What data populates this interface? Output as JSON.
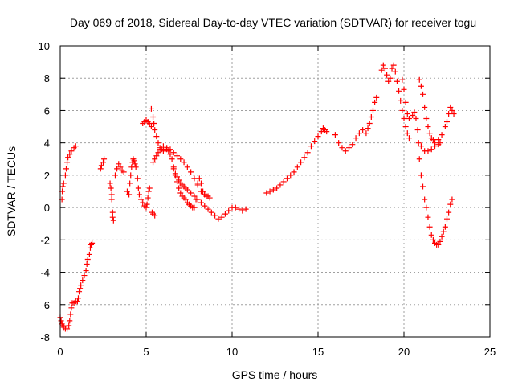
{
  "chart_data": {
    "type": "scatter",
    "title": "Day 069 of 2018, Sidereal Day-to-day VTEC variation (SDTVAR) for receiver togu",
    "xlabel": "GPS time / hours",
    "ylabel": "SDTVAR / TECUs",
    "xlim": [
      0,
      25
    ],
    "ylim": [
      -8,
      10
    ],
    "xticks": [
      0,
      5,
      10,
      15,
      20,
      25
    ],
    "yticks": [
      -8,
      -6,
      -4,
      -2,
      0,
      2,
      4,
      6,
      8,
      10
    ],
    "grid": true,
    "marker": "plus",
    "series": [
      {
        "color": "#ff0000",
        "points": [
          [
            0.0,
            -6.8
          ],
          [
            0.05,
            -7.0
          ],
          [
            0.1,
            -7.2
          ],
          [
            0.15,
            -7.3
          ],
          [
            0.2,
            -7.4
          ],
          [
            0.3,
            -7.5
          ],
          [
            0.4,
            -7.5
          ],
          [
            0.5,
            -7.3
          ],
          [
            0.55,
            -7.0
          ],
          [
            0.6,
            -6.6
          ],
          [
            0.65,
            -6.2
          ],
          [
            0.7,
            -5.9
          ],
          [
            0.8,
            -5.9
          ],
          [
            0.9,
            -5.8
          ],
          [
            1.0,
            -5.8
          ],
          [
            1.05,
            -5.6
          ],
          [
            1.1,
            -5.2
          ],
          [
            1.15,
            -5.0
          ],
          [
            1.2,
            -4.8
          ],
          [
            1.3,
            -4.5
          ],
          [
            1.4,
            -4.2
          ],
          [
            1.5,
            -3.9
          ],
          [
            1.55,
            -3.5
          ],
          [
            1.6,
            -3.2
          ],
          [
            1.7,
            -2.9
          ],
          [
            1.75,
            -2.5
          ],
          [
            1.8,
            -2.3
          ],
          [
            1.85,
            -2.2
          ],
          [
            0.1,
            0.5
          ],
          [
            0.12,
            1.0
          ],
          [
            0.15,
            1.3
          ],
          [
            0.2,
            1.5
          ],
          [
            0.3,
            2.0
          ],
          [
            0.35,
            2.4
          ],
          [
            0.4,
            2.8
          ],
          [
            0.45,
            3.1
          ],
          [
            0.55,
            3.3
          ],
          [
            0.65,
            3.5
          ],
          [
            0.8,
            3.7
          ],
          [
            0.9,
            3.8
          ],
          [
            2.35,
            2.4
          ],
          [
            2.4,
            2.6
          ],
          [
            2.5,
            2.8
          ],
          [
            2.55,
            3.0
          ],
          [
            2.9,
            1.5
          ],
          [
            2.95,
            1.2
          ],
          [
            3.0,
            0.8
          ],
          [
            3.0,
            0.5
          ],
          [
            3.05,
            -0.3
          ],
          [
            3.05,
            -0.6
          ],
          [
            3.1,
            -0.8
          ],
          [
            3.2,
            2.0
          ],
          [
            3.3,
            2.4
          ],
          [
            3.4,
            2.7
          ],
          [
            3.5,
            2.5
          ],
          [
            3.6,
            2.3
          ],
          [
            3.7,
            2.2
          ],
          [
            3.9,
            1.0
          ],
          [
            4.0,
            0.8
          ],
          [
            4.05,
            1.5
          ],
          [
            4.1,
            2.0
          ],
          [
            4.15,
            2.5
          ],
          [
            4.2,
            2.8
          ],
          [
            4.25,
            3.0
          ],
          [
            4.3,
            2.9
          ],
          [
            4.35,
            2.7
          ],
          [
            4.4,
            2.5
          ],
          [
            4.5,
            1.8
          ],
          [
            4.55,
            1.2
          ],
          [
            4.6,
            0.8
          ],
          [
            4.7,
            0.5
          ],
          [
            4.8,
            0.3
          ],
          [
            4.9,
            0.1
          ],
          [
            5.0,
            0.0
          ],
          [
            5.05,
            0.2
          ],
          [
            5.1,
            0.6
          ],
          [
            5.15,
            1.0
          ],
          [
            5.2,
            1.2
          ],
          [
            4.8,
            5.2
          ],
          [
            4.9,
            5.3
          ],
          [
            5.0,
            5.4
          ],
          [
            5.1,
            5.3
          ],
          [
            5.2,
            5.2
          ],
          [
            5.3,
            5.0
          ],
          [
            5.3,
            6.1
          ],
          [
            5.4,
            5.6
          ],
          [
            5.45,
            5.2
          ],
          [
            5.5,
            4.8
          ],
          [
            5.6,
            4.4
          ],
          [
            5.7,
            4.0
          ],
          [
            5.8,
            3.7
          ],
          [
            5.9,
            3.6
          ],
          [
            6.0,
            3.5
          ],
          [
            6.1,
            3.6
          ],
          [
            6.2,
            3.6
          ],
          [
            6.3,
            3.5
          ],
          [
            6.4,
            3.3
          ],
          [
            6.5,
            3.0
          ],
          [
            6.6,
            2.5
          ],
          [
            6.7,
            2.0
          ],
          [
            6.8,
            1.6
          ],
          [
            6.9,
            1.2
          ],
          [
            7.0,
            0.9
          ],
          [
            7.1,
            0.7
          ],
          [
            7.2,
            0.6
          ],
          [
            7.3,
            0.5
          ],
          [
            7.4,
            0.3
          ],
          [
            7.5,
            0.2
          ],
          [
            7.6,
            0.1
          ],
          [
            7.7,
            0.0
          ],
          [
            7.8,
            0.0
          ],
          [
            7.9,
            0.5
          ],
          [
            8.0,
            1.5
          ],
          [
            8.1,
            1.8
          ],
          [
            8.2,
            1.5
          ],
          [
            8.3,
            1.0
          ],
          [
            8.4,
            0.8
          ],
          [
            8.5,
            0.7
          ],
          [
            8.6,
            0.7
          ],
          [
            8.7,
            0.6
          ],
          [
            5.35,
            -0.3
          ],
          [
            5.4,
            -0.4
          ],
          [
            5.5,
            -0.5
          ],
          [
            5.4,
            2.8
          ],
          [
            5.5,
            3.0
          ],
          [
            5.6,
            3.2
          ],
          [
            5.7,
            3.4
          ],
          [
            5.8,
            3.6
          ],
          [
            6.0,
            3.8
          ],
          [
            6.2,
            3.7
          ],
          [
            6.4,
            3.6
          ],
          [
            6.6,
            3.4
          ],
          [
            6.8,
            3.2
          ],
          [
            7.0,
            3.0
          ],
          [
            7.2,
            2.8
          ],
          [
            7.4,
            2.5
          ],
          [
            7.6,
            2.2
          ],
          [
            7.8,
            1.8
          ],
          [
            8.0,
            1.4
          ],
          [
            8.2,
            1.0
          ],
          [
            8.4,
            0.8
          ],
          [
            8.5,
            0.7
          ],
          [
            6.6,
            2.4
          ],
          [
            6.7,
            2.1
          ],
          [
            6.8,
            1.9
          ],
          [
            6.9,
            1.7
          ],
          [
            7.0,
            1.5
          ],
          [
            7.1,
            1.4
          ],
          [
            7.2,
            1.3
          ],
          [
            7.3,
            1.2
          ],
          [
            7.4,
            1.1
          ],
          [
            7.6,
            0.9
          ],
          [
            7.8,
            0.7
          ],
          [
            8.0,
            0.5
          ],
          [
            8.2,
            0.3
          ],
          [
            8.4,
            0.1
          ],
          [
            8.6,
            -0.1
          ],
          [
            8.8,
            -0.3
          ],
          [
            9.0,
            -0.5
          ],
          [
            9.2,
            -0.7
          ],
          [
            9.4,
            -0.6
          ],
          [
            9.6,
            -0.4
          ],
          [
            9.8,
            -0.2
          ],
          [
            10.0,
            0.0
          ],
          [
            10.2,
            0.0
          ],
          [
            10.4,
            -0.1
          ],
          [
            10.6,
            -0.2
          ],
          [
            10.8,
            -0.1
          ],
          [
            12.0,
            0.9
          ],
          [
            12.2,
            1.0
          ],
          [
            12.4,
            1.1
          ],
          [
            12.6,
            1.2
          ],
          [
            12.8,
            1.4
          ],
          [
            13.0,
            1.6
          ],
          [
            13.2,
            1.8
          ],
          [
            13.4,
            2.0
          ],
          [
            13.6,
            2.2
          ],
          [
            13.8,
            2.5
          ],
          [
            14.0,
            2.8
          ],
          [
            14.2,
            3.1
          ],
          [
            14.4,
            3.4
          ],
          [
            14.6,
            3.8
          ],
          [
            14.8,
            4.1
          ],
          [
            15.0,
            4.4
          ],
          [
            15.2,
            4.7
          ],
          [
            15.3,
            4.9
          ],
          [
            15.4,
            4.8
          ],
          [
            15.5,
            4.7
          ],
          [
            16.0,
            4.5
          ],
          [
            16.2,
            4.0
          ],
          [
            16.4,
            3.7
          ],
          [
            16.6,
            3.5
          ],
          [
            16.8,
            3.7
          ],
          [
            17.0,
            3.9
          ],
          [
            17.2,
            4.3
          ],
          [
            17.4,
            4.6
          ],
          [
            17.6,
            4.8
          ],
          [
            17.8,
            4.6
          ],
          [
            17.9,
            4.9
          ],
          [
            18.0,
            5.2
          ],
          [
            18.1,
            5.6
          ],
          [
            18.2,
            6.0
          ],
          [
            18.3,
            6.5
          ],
          [
            18.4,
            6.8
          ],
          [
            18.7,
            8.5
          ],
          [
            18.8,
            8.8
          ],
          [
            18.9,
            8.6
          ],
          [
            19.0,
            8.2
          ],
          [
            19.1,
            7.8
          ],
          [
            19.2,
            8.0
          ],
          [
            19.3,
            8.6
          ],
          [
            19.4,
            8.8
          ],
          [
            19.5,
            8.4
          ],
          [
            19.6,
            7.8
          ],
          [
            19.7,
            7.2
          ],
          [
            19.8,
            6.6
          ],
          [
            19.9,
            6.0
          ],
          [
            20.0,
            5.5
          ],
          [
            20.1,
            5.0
          ],
          [
            20.2,
            4.6
          ],
          [
            20.3,
            4.3
          ],
          [
            19.9,
            7.9
          ],
          [
            20.0,
            7.3
          ],
          [
            20.1,
            6.5
          ],
          [
            20.2,
            5.8
          ],
          [
            20.3,
            5.5
          ],
          [
            20.5,
            5.7
          ],
          [
            20.6,
            5.9
          ],
          [
            20.9,
            7.9
          ],
          [
            21.0,
            7.5
          ],
          [
            21.1,
            7.0
          ],
          [
            21.2,
            6.2
          ],
          [
            21.3,
            5.5
          ],
          [
            21.4,
            5.0
          ],
          [
            21.5,
            4.6
          ],
          [
            21.6,
            4.3
          ],
          [
            21.7,
            4.2
          ],
          [
            21.8,
            4.0
          ],
          [
            22.0,
            4.2
          ],
          [
            22.2,
            4.5
          ],
          [
            22.4,
            5.0
          ],
          [
            22.5,
            5.3
          ],
          [
            22.6,
            5.8
          ],
          [
            22.7,
            6.2
          ],
          [
            22.8,
            6.0
          ],
          [
            22.9,
            5.8
          ],
          [
            20.7,
            5.5
          ],
          [
            20.8,
            4.8
          ],
          [
            20.85,
            4.0
          ],
          [
            20.9,
            3.0
          ],
          [
            21.0,
            2.0
          ],
          [
            21.1,
            1.3
          ],
          [
            21.2,
            0.5
          ],
          [
            21.3,
            0.0
          ],
          [
            21.4,
            -0.6
          ],
          [
            21.5,
            -1.2
          ],
          [
            21.6,
            -1.7
          ],
          [
            21.7,
            -2.0
          ],
          [
            21.8,
            -2.2
          ],
          [
            21.9,
            -2.3
          ],
          [
            22.0,
            -2.3
          ],
          [
            22.1,
            -2.1
          ],
          [
            22.2,
            -1.8
          ],
          [
            22.3,
            -1.5
          ],
          [
            22.4,
            -1.2
          ],
          [
            22.5,
            -0.7
          ],
          [
            22.6,
            -0.3
          ],
          [
            22.7,
            0.2
          ],
          [
            22.8,
            0.5
          ],
          [
            21.0,
            3.8
          ],
          [
            21.2,
            3.5
          ],
          [
            21.4,
            3.5
          ],
          [
            21.6,
            3.6
          ],
          [
            21.8,
            3.8
          ],
          [
            22.0,
            3.9
          ],
          [
            22.1,
            4.0
          ]
        ]
      }
    ]
  }
}
